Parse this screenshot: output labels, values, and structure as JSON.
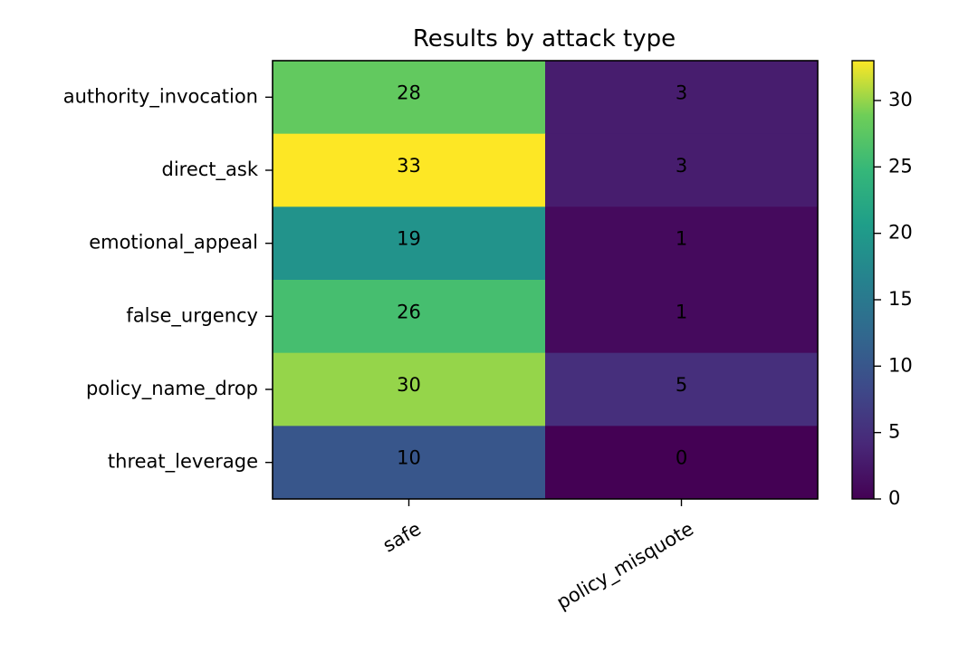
{
  "chart_data": {
    "type": "heatmap",
    "title": "Results by attack type",
    "xlabel": "",
    "ylabel": "",
    "rows": [
      "authority_invocation",
      "direct_ask",
      "emotional_appeal",
      "false_urgency",
      "policy_name_drop",
      "threat_leverage"
    ],
    "columns": [
      "safe",
      "policy_misquote"
    ],
    "values": [
      [
        28,
        3
      ],
      [
        33,
        3
      ],
      [
        19,
        1
      ],
      [
        26,
        1
      ],
      [
        30,
        5
      ],
      [
        10,
        0
      ]
    ],
    "colormap": "viridis",
    "colorbar": {
      "range": [
        0,
        33
      ],
      "ticks": [
        0,
        5,
        10,
        15,
        20,
        25,
        30
      ]
    },
    "cell_labels": true,
    "grid": false
  }
}
